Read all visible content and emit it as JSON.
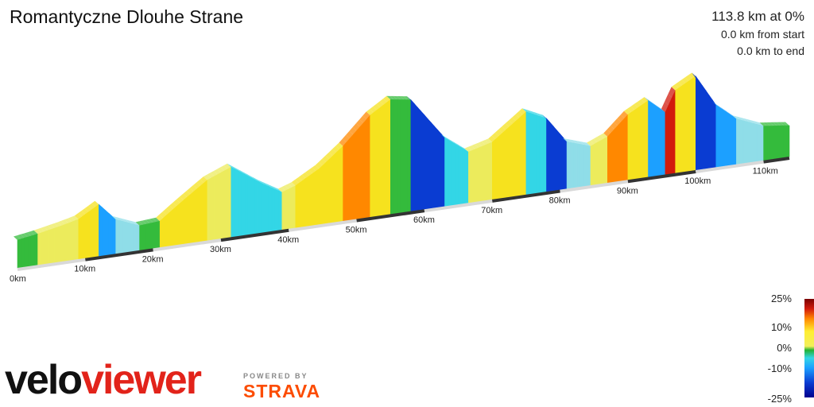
{
  "title": "Romantyczne Dlouhe Strane",
  "stats": {
    "headline": "113.8 km at 0%",
    "from_start": "0.0 km from start",
    "to_end": "0.0 km to end"
  },
  "legend": {
    "labels": [
      "25%",
      "10%",
      "0%",
      "-10%",
      "-25%"
    ]
  },
  "logo": {
    "velo": "velo",
    "viewer": "viewer",
    "powered_by": "POWERED BY",
    "strava": "STRAVA"
  },
  "colors": {
    "brand_red": "#e2231a",
    "strava_orange": "#fc4c02",
    "grade_steep_up": "#d21a0c",
    "grade_up": "#ffee33",
    "grade_flat": "#22b232",
    "grade_down": "#33d6e6",
    "grade_steep_down": "#0a3cd2"
  },
  "chart_data": {
    "type": "area",
    "title": "Romantyczne Dlouhe Strane",
    "distance_km": 113.8,
    "x_unit": "km",
    "y_unit": "m",
    "x_ticks": [
      "0km",
      "10km",
      "20km",
      "30km",
      "40km",
      "50km",
      "60km",
      "70km",
      "80km",
      "90km",
      "100km",
      "110km"
    ],
    "elevation_profile": {
      "distance_km": [
        0,
        3,
        6.5,
        9,
        12,
        14.5,
        18,
        21,
        24,
        28,
        31.5,
        36,
        39,
        41,
        44.5,
        48,
        52,
        55,
        56.5,
        58,
        63,
        66.5,
        70,
        75,
        78,
        81,
        84.5,
        87,
        90,
        93,
        95.5,
        97,
        100,
        103,
        106,
        110,
        113.8
      ],
      "elevation_m": [
        350,
        390,
        450,
        500,
        650,
        430,
        310,
        330,
        520,
        760,
        880,
        620,
        470,
        530,
        700,
        940,
        1280,
        1440,
        1420,
        1400,
        860,
        640,
        720,
        1040,
        920,
        590,
        490,
        580,
        820,
        960,
        780,
        1040,
        1180,
        780,
        570,
        430,
        390
      ]
    },
    "grade_scale": {
      "max": 25,
      "min": -25,
      "labels": [
        "25%",
        "10%",
        "0%",
        "-10%",
        "-25%"
      ]
    },
    "grid": false,
    "legend_position": "bottom-right"
  }
}
